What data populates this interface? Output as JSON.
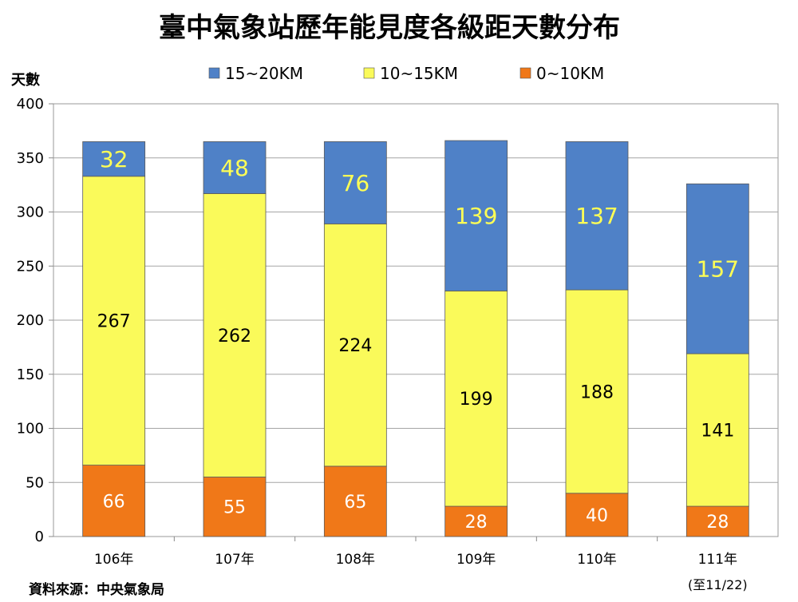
{
  "title": "臺中氣象站歷年能見度各級距天數分布",
  "source": "資料來源：中央氣象局",
  "chart_data": {
    "type": "bar",
    "stacked": true,
    "title": "臺中氣象站歷年能見度各級距天數分布",
    "ylabel": "天數",
    "xlabel": "",
    "ylim": [
      0,
      400
    ],
    "yticks": [
      0,
      50,
      100,
      150,
      200,
      250,
      300,
      350,
      400
    ],
    "grid": true,
    "legend_position": "top",
    "categories": [
      "106年",
      "107年",
      "108年",
      "109年",
      "110年",
      "111年"
    ],
    "category_notes": [
      "",
      "",
      "",
      "",
      "",
      "(至11/22)"
    ],
    "series": [
      {
        "name": "0~10KM",
        "color": "#f07818",
        "label_color": "#ffffff",
        "values": [
          66,
          55,
          65,
          28,
          40,
          28
        ]
      },
      {
        "name": "10~15KM",
        "color": "#fafa5a",
        "label_color": "#000000",
        "values": [
          267,
          262,
          224,
          199,
          188,
          141
        ]
      },
      {
        "name": "15~20KM",
        "color": "#4f81c7",
        "label_color": "#ffff55",
        "values": [
          32,
          48,
          76,
          139,
          137,
          157
        ]
      }
    ],
    "legend_order": [
      "15~20KM",
      "10~15KM",
      "0~10KM"
    ]
  }
}
